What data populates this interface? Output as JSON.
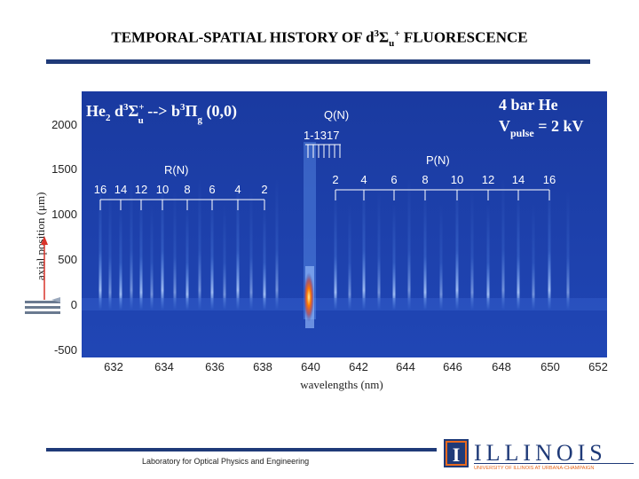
{
  "slide": {
    "title_parts": {
      "pre": "TEMPORAL-SPATIAL HISTORY OF d",
      "sup3": "3",
      "sigma": "Σ",
      "sub_u": "u",
      "sup_plus": "+",
      "post": " FLUORESCENCE"
    },
    "footer": "Laboratory for Optical Physics and Engineering"
  },
  "logo": {
    "mark": "I",
    "word": "ILLINOIS",
    "subtitle": "UNIVERSITY OF ILLINOIS AT URBANA-CHAMPAIGN",
    "colors": {
      "navy": "#1f3a78",
      "orange": "#e8681e"
    }
  },
  "plot": {
    "xlabel": "wavelengths (nm)",
    "ylabel": "axial position (μm)",
    "xticks": [
      "632",
      "634",
      "636",
      "638",
      "640",
      "642",
      "644",
      "646",
      "648",
      "650",
      "652"
    ],
    "yticks": [
      "2000",
      "1500",
      "1000",
      "500",
      "0",
      "-500"
    ],
    "transition": {
      "He2": "He",
      "sub2": "2",
      "d": " d",
      "sup3": "3",
      "sigma": "Σ",
      "supplus": "+",
      "subu": "u",
      "arrow": " --> b",
      "supb3": "3",
      "pi": "Π",
      "subg": "g",
      "band": " (0,0)"
    },
    "conditions": {
      "pressure": "4 bar He",
      "v": "V",
      "vsub": "pulse",
      "veq": " = 2 kV"
    },
    "branch_q": {
      "label": "Q(N)",
      "range": "1-1317"
    },
    "branch_r": {
      "label": "R(N)",
      "numbers": [
        "16",
        "14",
        "12",
        "10",
        "8",
        "6",
        "4",
        "2"
      ]
    },
    "branch_p": {
      "label": "P(N)",
      "numbers": [
        "2",
        "4",
        "6",
        "8",
        "10",
        "12",
        "14",
        "16"
      ]
    },
    "colors": {
      "background": "#1b3fa8",
      "line": "#6fa8ff",
      "hot": "#ff7a00"
    }
  }
}
